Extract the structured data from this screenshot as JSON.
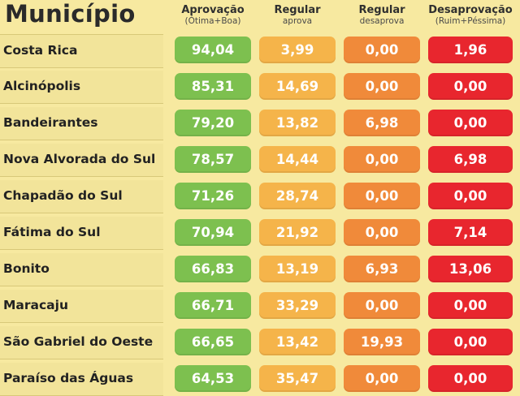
{
  "header": {
    "title": "Município",
    "columns": [
      {
        "label": "Aprovação",
        "sublabel": "(Ótima+Boa)"
      },
      {
        "label": "Regular",
        "sublabel": "aprova"
      },
      {
        "label": "Regular",
        "sublabel": "desaprova"
      },
      {
        "label": "Desaprovação",
        "sublabel": "(Ruim+Péssima)"
      }
    ]
  },
  "colors": {
    "aprovacao": "#7dc04f",
    "regular_aprova": "#f5b44a",
    "regular_desaprova": "#f08a3a",
    "desaprovacao": "#e8262e"
  },
  "rows": [
    {
      "municipio": "Costa Rica",
      "aprovacao": "94,04",
      "regular_aprova": "3,99",
      "regular_desaprova": "0,00",
      "desaprovacao": "1,96"
    },
    {
      "municipio": "Alcinópolis",
      "aprovacao": "85,31",
      "regular_aprova": "14,69",
      "regular_desaprova": "0,00",
      "desaprovacao": "0,00"
    },
    {
      "municipio": "Bandeirantes",
      "aprovacao": "79,20",
      "regular_aprova": "13,82",
      "regular_desaprova": "6,98",
      "desaprovacao": "0,00"
    },
    {
      "municipio": "Nova Alvorada do Sul",
      "aprovacao": "78,57",
      "regular_aprova": "14,44",
      "regular_desaprova": "0,00",
      "desaprovacao": "6,98"
    },
    {
      "municipio": "Chapadão do Sul",
      "aprovacao": "71,26",
      "regular_aprova": "28,74",
      "regular_desaprova": "0,00",
      "desaprovacao": "0,00"
    },
    {
      "municipio": "Fátima do Sul",
      "aprovacao": "70,94",
      "regular_aprova": "21,92",
      "regular_desaprova": "0,00",
      "desaprovacao": "7,14"
    },
    {
      "municipio": "Bonito",
      "aprovacao": "66,83",
      "regular_aprova": "13,19",
      "regular_desaprova": "6,93",
      "desaprovacao": "13,06"
    },
    {
      "municipio": "Maracaju",
      "aprovacao": "66,71",
      "regular_aprova": "33,29",
      "regular_desaprova": "0,00",
      "desaprovacao": "0,00"
    },
    {
      "municipio": "São Gabriel do Oeste",
      "aprovacao": "66,65",
      "regular_aprova": "13,42",
      "regular_desaprova": "19,93",
      "desaprovacao": "0,00"
    },
    {
      "municipio": "Paraíso das Águas",
      "aprovacao": "64,53",
      "regular_aprova": "35,47",
      "regular_desaprova": "0,00",
      "desaprovacao": "0,00"
    }
  ]
}
